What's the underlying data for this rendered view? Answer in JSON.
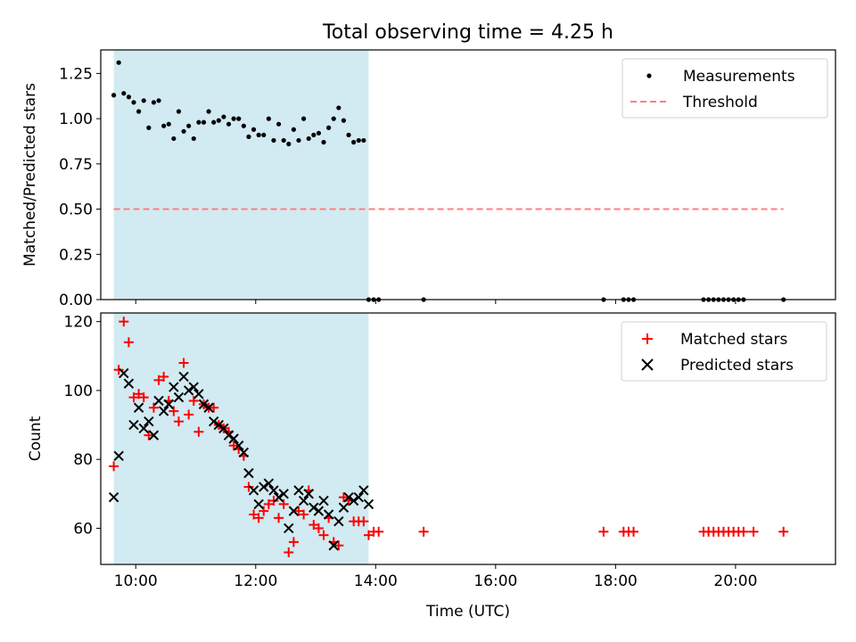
{
  "title": "Total observing time = 4.25 h",
  "colors": {
    "span": "#add8e6",
    "threshold": "#ff7f7f",
    "measurement": "#000000",
    "matched": "#ff0000",
    "predicted": "#000000"
  },
  "chart_data": [
    {
      "type": "scatter",
      "panel": "top",
      "title": "Total observing time = 4.25 h",
      "xlabel": "",
      "ylabel": "Matched/Predicted stars",
      "xlim": [
        "09:25",
        "21:40"
      ],
      "ylim": [
        0,
        1.38
      ],
      "yticks": [
        "0.00",
        "0.25",
        "0.50",
        "0.75",
        "1.00",
        "1.25"
      ],
      "legend_position": "top-right",
      "shaded_span": [
        "09:38",
        "13:53"
      ],
      "series": [
        {
          "name": "Measurements",
          "marker": "dot",
          "x": [
            "09:38",
            "09:43",
            "09:48",
            "09:53",
            "09:58",
            "10:03",
            "10:08",
            "10:13",
            "10:18",
            "10:23",
            "10:28",
            "10:33",
            "10:38",
            "10:43",
            "10:48",
            "10:53",
            "10:58",
            "11:03",
            "11:08",
            "11:13",
            "11:18",
            "11:23",
            "11:28",
            "11:33",
            "11:38",
            "11:43",
            "11:48",
            "11:53",
            "11:58",
            "12:03",
            "12:08",
            "12:13",
            "12:18",
            "12:23",
            "12:28",
            "12:33",
            "12:38",
            "12:43",
            "12:48",
            "12:53",
            "12:58",
            "13:03",
            "13:08",
            "13:13",
            "13:18",
            "13:23",
            "13:28",
            "13:33",
            "13:38",
            "13:43",
            "13:48",
            "13:53",
            "13:58",
            "14:03",
            "14:48",
            "17:48",
            "18:08",
            "18:13",
            "18:18",
            "19:28",
            "19:33",
            "19:38",
            "19:43",
            "19:48",
            "19:53",
            "19:58",
            "20:03",
            "20:08",
            "20:48"
          ],
          "y": [
            1.13,
            1.31,
            1.14,
            1.12,
            1.09,
            1.04,
            1.1,
            0.95,
            1.09,
            1.1,
            0.96,
            0.97,
            0.89,
            1.04,
            0.93,
            0.96,
            0.89,
            0.98,
            0.98,
            1.04,
            0.98,
            0.99,
            1.01,
            0.97,
            1.0,
            1.0,
            0.96,
            0.9,
            0.94,
            0.91,
            0.91,
            1.0,
            0.88,
            0.97,
            0.88,
            0.86,
            0.94,
            0.88,
            1.0,
            0.89,
            0.91,
            0.92,
            0.87,
            0.95,
            1.0,
            1.06,
            0.99,
            0.91,
            0.87,
            0.88,
            0.88,
            0,
            0,
            0,
            0,
            0,
            0,
            0,
            0,
            0,
            0,
            0,
            0,
            0,
            0,
            0,
            0,
            0,
            0
          ]
        },
        {
          "name": "Threshold",
          "style": "dashed",
          "x": [
            "09:38",
            "20:48"
          ],
          "y": [
            0.5,
            0.5
          ]
        }
      ]
    },
    {
      "type": "scatter",
      "panel": "bottom",
      "xlabel": "Time (UTC)",
      "ylabel": "Count",
      "xlim": [
        "09:25",
        "21:40"
      ],
      "ylim": [
        49.5,
        122.5
      ],
      "xticks": [
        "10:00",
        "12:00",
        "14:00",
        "16:00",
        "18:00",
        "20:00"
      ],
      "yticks": [
        "60",
        "80",
        "100",
        "120"
      ],
      "legend_position": "top-right",
      "shaded_span": [
        "09:38",
        "13:53"
      ],
      "series": [
        {
          "name": "Matched stars",
          "marker": "plus",
          "x": [
            "09:38",
            "09:43",
            "09:48",
            "09:53",
            "09:58",
            "10:03",
            "10:08",
            "10:13",
            "10:18",
            "10:23",
            "10:28",
            "10:33",
            "10:38",
            "10:43",
            "10:48",
            "10:53",
            "10:58",
            "11:03",
            "11:08",
            "11:13",
            "11:18",
            "11:23",
            "11:28",
            "11:33",
            "11:38",
            "11:43",
            "11:48",
            "11:53",
            "11:58",
            "12:03",
            "12:08",
            "12:13",
            "12:18",
            "12:23",
            "12:28",
            "12:33",
            "12:38",
            "12:43",
            "12:48",
            "12:53",
            "12:58",
            "13:03",
            "13:08",
            "13:13",
            "13:18",
            "13:23",
            "13:28",
            "13:33",
            "13:38",
            "13:43",
            "13:48",
            "13:53",
            "13:58",
            "14:03",
            "14:48",
            "17:48",
            "18:08",
            "18:13",
            "18:18",
            "19:28",
            "19:33",
            "19:38",
            "19:43",
            "19:48",
            "19:53",
            "19:58",
            "20:03",
            "20:08",
            "20:18",
            "20:48"
          ],
          "y": [
            78,
            106,
            120,
            114,
            98,
            99,
            98,
            87,
            95,
            103,
            104,
            97,
            94,
            91,
            108,
            93,
            97,
            88,
            96,
            95,
            95,
            90,
            89,
            88,
            84,
            83,
            81,
            72,
            64,
            63,
            65,
            67,
            68,
            63,
            67,
            53,
            56,
            65,
            64,
            71,
            61,
            60,
            58,
            63,
            56,
            55,
            69,
            68,
            62,
            62,
            62,
            58,
            59,
            59,
            59,
            59,
            59,
            59,
            59,
            59,
            59,
            59,
            59,
            59,
            59,
            59,
            59,
            59,
            59,
            59
          ]
        },
        {
          "name": "Predicted stars",
          "marker": "x",
          "x": [
            "09:38",
            "09:43",
            "09:48",
            "09:53",
            "09:58",
            "10:03",
            "10:08",
            "10:13",
            "10:18",
            "10:23",
            "10:28",
            "10:33",
            "10:38",
            "10:43",
            "10:48",
            "10:53",
            "10:58",
            "11:03",
            "11:08",
            "11:13",
            "11:18",
            "11:23",
            "11:28",
            "11:33",
            "11:38",
            "11:43",
            "11:48",
            "11:53",
            "11:58",
            "12:03",
            "12:08",
            "12:13",
            "12:18",
            "12:23",
            "12:28",
            "12:33",
            "12:38",
            "12:43",
            "12:48",
            "12:53",
            "12:58",
            "13:03",
            "13:08",
            "13:13",
            "13:18",
            "13:23",
            "13:28",
            "13:33",
            "13:38",
            "13:43",
            "13:48",
            "13:53"
          ],
          "y": [
            69,
            81,
            105,
            102,
            90,
            95,
            89,
            91,
            87,
            97,
            94,
            96,
            101,
            98,
            104,
            100,
            101,
            99,
            96,
            95,
            91,
            90,
            89,
            87,
            86,
            84,
            82,
            76,
            71,
            67,
            72,
            73,
            71,
            69,
            70,
            60,
            65,
            71,
            68,
            70,
            66,
            65,
            68,
            64,
            55,
            62,
            66,
            69,
            68,
            69,
            71,
            67
          ]
        }
      ]
    }
  ]
}
